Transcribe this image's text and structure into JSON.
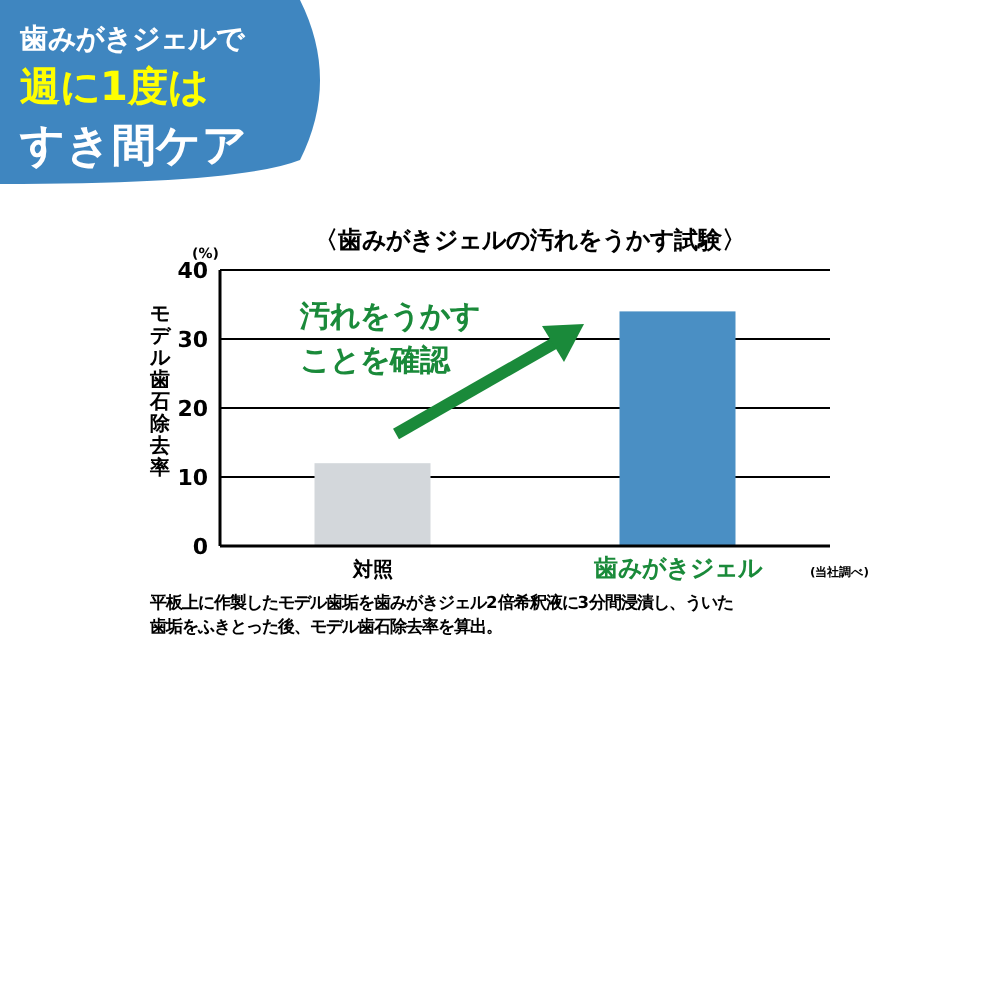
{
  "chart_data": {
    "type": "bar",
    "title": "〈歯みがきジェルの汚れをうかす試験〉",
    "ylabel": "モデル歯石除去率",
    "categories": [
      "対照",
      "歯みがきジェル"
    ],
    "values": [
      12,
      34
    ],
    "colors": [
      "#d3d7db",
      "#4a8fc4"
    ],
    "ylim": [
      0,
      40
    ],
    "yticks": [
      0,
      10,
      20,
      30,
      {
        "value": 40,
        "label": "40"
      }
    ],
    "grid": "y",
    "annotations": [
      "歯みがきジェルで",
      "週に1度は",
      "すき間ケア",
      "汚れをうかす",
      "ことを確認",
      "(%)",
      "(当社調べ)",
      "平板上に作製したモデル歯垢を歯みがきジェル2倍希釈液に3分間浸漬し、ういた",
      "歯垢をふきとった後、モデル歯石除去率を算出。"
    ]
  }
}
